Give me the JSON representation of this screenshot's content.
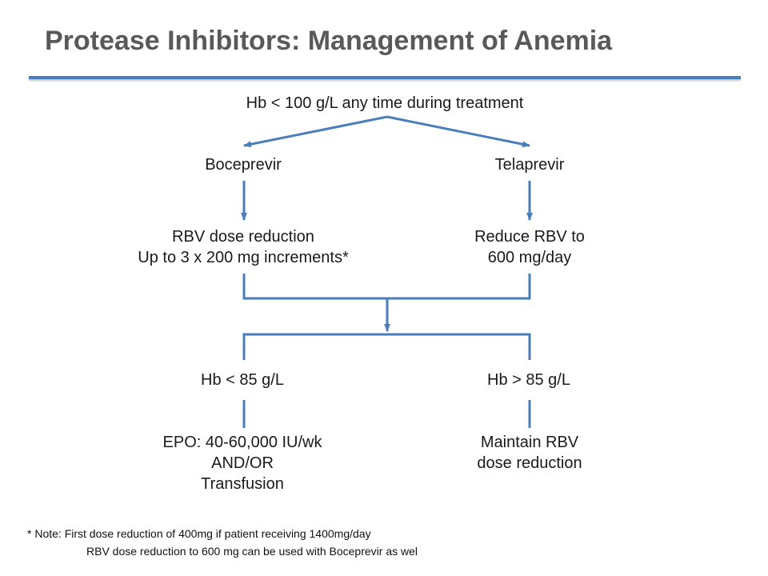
{
  "slide": {
    "title": "Protease Inhibitors: Management of Anemia",
    "accent_color": "#4a7ebb"
  },
  "flowchart": {
    "start": "Hb < 100 g/L any time during treatment",
    "left_branch": {
      "drug": "Boceprevir",
      "action_lines": [
        "RBV dose reduction",
        "Up to 3 x 200 mg increments*"
      ]
    },
    "right_branch": {
      "drug": "Telaprevir",
      "action_lines": [
        "Reduce RBV to",
        "600 mg/day"
      ]
    },
    "low_hb": {
      "condition": "Hb < 85 g/L",
      "action_lines": [
        "EPO: 40-60,000 IU/wk",
        "AND/OR",
        "Transfusion"
      ]
    },
    "high_hb": {
      "condition": "Hb > 85 g/L",
      "action_lines": [
        "Maintain RBV",
        "dose reduction"
      ]
    }
  },
  "footnote": {
    "line1": "* Note:  First dose reduction of 400mg if patient receiving 1400mg/day",
    "line2": "RBV dose reduction to 600 mg can be used with Boceprevir as wel"
  }
}
